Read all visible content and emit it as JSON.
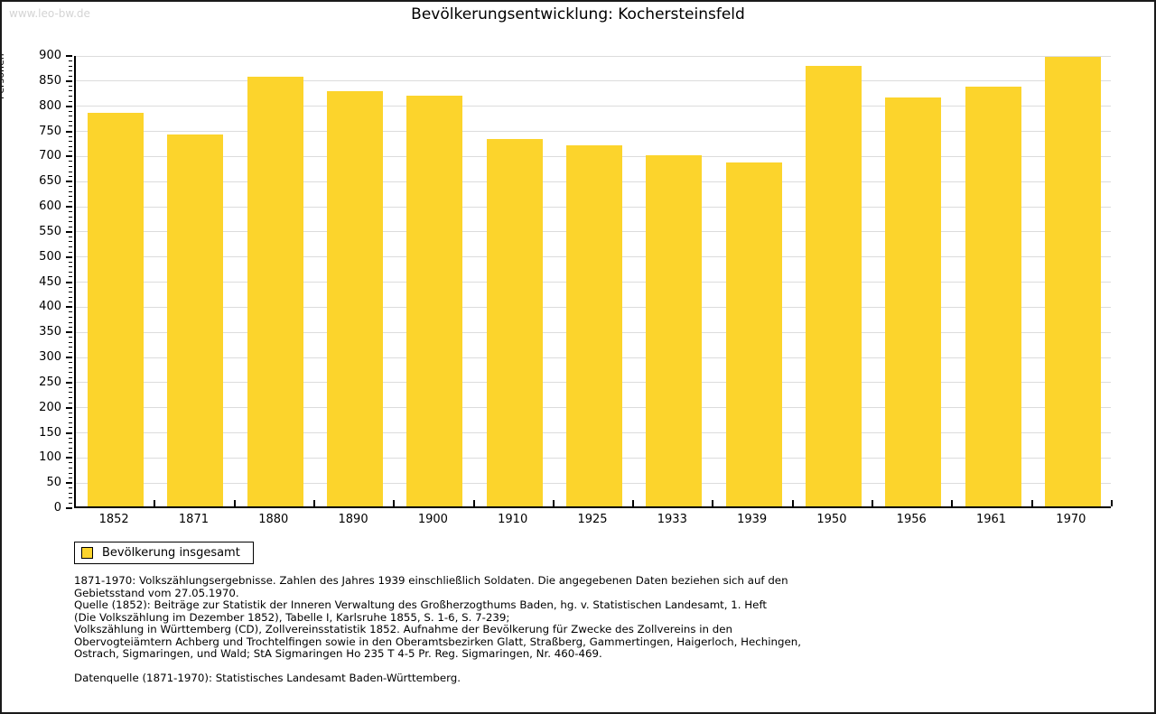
{
  "watermark": "www.leo-bw.de",
  "title": "Bevölkerungsentwicklung: Kochersteinsfeld",
  "chart_data": {
    "type": "bar",
    "title": "Bevölkerungsentwicklung: Kochersteinsfeld",
    "categories": [
      "1852",
      "1871",
      "1880",
      "1890",
      "1900",
      "1910",
      "1925",
      "1933",
      "1939",
      "1950",
      "1956",
      "1961",
      "1970"
    ],
    "values": [
      783,
      741,
      856,
      827,
      818,
      731,
      719,
      699,
      684,
      876,
      813,
      835,
      895
    ],
    "series_name": "Bevölkerung insgesamt",
    "xlabel": "",
    "ylabel": "Personen",
    "ylim": [
      0,
      900
    ],
    "y_major_step": 50,
    "y_minor_step": 10,
    "grid": true,
    "legend_position": "bottom-left",
    "bar_color": "#FCD42C",
    "grid_color": "#DCDCDC",
    "axis_color": "#000000"
  },
  "legend": {
    "label": "Bevölkerung insgesamt"
  },
  "footnotes": {
    "lines": [
      "1871-1970: Volkszählungsergebnisse. Zahlen des Jahres 1939 einschließlich Soldaten. Die angegebenen Daten beziehen sich auf den",
      "Gebietsstand vom 27.05.1970.",
      "Quelle (1852): Beiträge zur Statistik der Inneren Verwaltung des Großherzogthums Baden, hg. v. Statistischen Landesamt, 1. Heft",
      "(Die Volkszählung im Dezember 1852), Tabelle I, Karlsruhe 1855, S. 1-6, S. 7-239;",
      "Volkszählung in Württemberg (CD), Zollvereinsstatistik 1852. Aufnahme der Bevölkerung für Zwecke des Zollvereins in den",
      "Obervogteiämtern Achberg und Trochtelfingen sowie in den Oberamtsbezirken Glatt, Straßberg, Gammertingen, Haigerloch, Hechingen,",
      "Ostrach, Sigmaringen, und Wald; StA Sigmaringen Ho 235 T 4-5 Pr. Reg. Sigmaringen, Nr. 460-469."
    ],
    "datenquelle": "Datenquelle (1871-1970): Statistisches Landesamt Baden-Württemberg."
  },
  "colors": {
    "watermark": "#D4D4D4"
  }
}
